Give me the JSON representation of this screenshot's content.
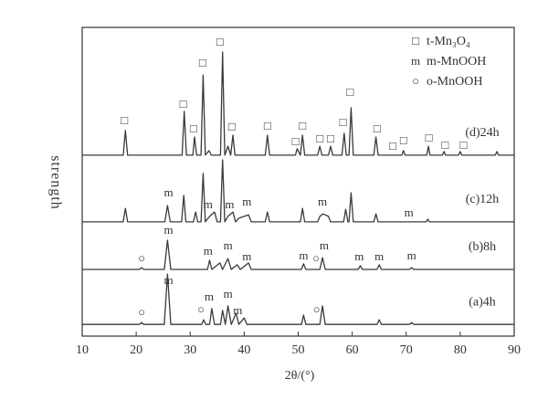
{
  "chart_data": {
    "type": "line",
    "x_label": "2θ/(°)",
    "y_label": "strength",
    "xlim": [
      10,
      90
    ],
    "xticks": [
      10,
      20,
      30,
      40,
      50,
      60,
      70,
      80,
      90
    ],
    "ylim": [
      0,
      100
    ],
    "grid": false,
    "color": "#3a3a3a",
    "legend_position": "top-right",
    "legend": [
      {
        "symbol": "□",
        "label": "t-Mn₃O₄"
      },
      {
        "symbol": "m",
        "label": "m-MnOOH"
      },
      {
        "symbol": "○",
        "label": "o-MnOOH"
      }
    ],
    "series": [
      {
        "name": "(d)24h",
        "x": [
          10,
          17.6,
          18,
          18.4,
          28.5,
          28.9,
          29.3,
          30.5,
          30.8,
          31.2,
          32.0,
          32.4,
          32.8,
          33.5,
          33.9,
          35.6,
          36,
          36.4,
          37,
          37.5,
          37.9,
          38.3,
          43.9,
          44.3,
          44.7,
          49.5,
          49.8,
          50.4,
          50.8,
          51.2,
          53.6,
          54,
          54.4,
          55.6,
          56,
          56.4,
          58.1,
          58.5,
          58.9,
          59.4,
          59.8,
          60.2,
          64,
          64.4,
          64.8,
          69.2,
          69.5,
          69.8,
          73.8,
          74.1,
          74.4,
          76.7,
          77,
          77.3,
          79.7,
          80,
          80.3,
          86.5,
          86.8,
          87.1,
          90
        ],
        "values": [
          58.6,
          58.6,
          66.6,
          58.6,
          58.6,
          72.8,
          58.6,
          58.6,
          64.5,
          58.6,
          58.6,
          84.6,
          58.6,
          60.1,
          58.6,
          58.6,
          92.0,
          58.6,
          61.5,
          58.6,
          65.1,
          58.6,
          58.6,
          65.1,
          58.6,
          58.6,
          60.7,
          58.6,
          65.1,
          58.6,
          58.6,
          61.5,
          58.6,
          58.6,
          61.5,
          58.6,
          58.6,
          65.7,
          58.6,
          58.6,
          74.0,
          58.6,
          58.6,
          64.5,
          58.6,
          58.6,
          60.1,
          58.6,
          58.6,
          61.5,
          58.6,
          58.6,
          59.8,
          58.6,
          58.6,
          59.8,
          58.6,
          58.6,
          59.8,
          58.6,
          58.6
        ]
      },
      {
        "name": "(c)12h",
        "x": [
          10,
          17.6,
          18,
          18.4,
          25.3,
          25.8,
          26.3,
          28.4,
          28.8,
          29.2,
          30.6,
          31,
          31.4,
          32,
          32.4,
          32.8,
          33.6,
          34.5,
          35,
          35.6,
          36,
          36.4,
          37,
          37.9,
          38.4,
          39,
          40.8,
          41.3,
          43.9,
          44.3,
          44.7,
          50.4,
          50.8,
          51.2,
          53.6,
          54,
          54.6,
          55.6,
          56,
          58.4,
          58.8,
          59.2,
          59.4,
          59.8,
          60.2,
          64,
          64.4,
          64.8,
          73.7,
          74,
          74.3,
          90
        ],
        "values": [
          37,
          37,
          41.4,
          37,
          37,
          42.3,
          37,
          37,
          45.6,
          37,
          37,
          40.2,
          37,
          37,
          52.7,
          37,
          38.8,
          40.2,
          37,
          37,
          57.1,
          37,
          38.8,
          40.2,
          37,
          38.2,
          39.3,
          37,
          37,
          40.2,
          37,
          37,
          41.4,
          37,
          37,
          38.8,
          39.6,
          38.8,
          37,
          37,
          41.1,
          37,
          37,
          46.4,
          37,
          37,
          39.6,
          37,
          37,
          37.9,
          37,
          37
        ]
      },
      {
        "name": "(b)8h",
        "x": [
          10,
          20.6,
          21,
          21.4,
          25.2,
          25.8,
          26.4,
          33.2,
          33.6,
          34,
          35.5,
          36,
          37,
          37.6,
          38.7,
          39.3,
          40.8,
          41.3,
          50.6,
          51,
          51.4,
          54,
          54.5,
          55,
          61.1,
          61.5,
          61.9,
          64.6,
          65,
          65.4,
          70.6,
          71,
          71.4,
          90
        ],
        "values": [
          21.6,
          21.6,
          22.2,
          21.6,
          21.6,
          31.1,
          21.6,
          21.6,
          24.6,
          21.6,
          23.7,
          21.6,
          25.1,
          21.6,
          23.1,
          21.6,
          23.7,
          21.6,
          21.6,
          23.4,
          21.6,
          21.6,
          25.4,
          21.6,
          21.6,
          22.8,
          21.6,
          21.6,
          23.1,
          21.6,
          21.6,
          22.2,
          21.6,
          21.6
        ]
      },
      {
        "name": "(a)4h",
        "x": [
          10,
          20.6,
          21,
          21.4,
          25.2,
          25.8,
          26.4,
          32.1,
          32.5,
          32.9,
          33.6,
          34,
          34.5,
          35.6,
          36,
          36.5,
          37,
          37.6,
          38.5,
          39,
          40,
          40.5,
          50.6,
          51,
          51.4,
          54,
          54.5,
          55,
          64.6,
          65,
          65.4,
          70.6,
          71,
          71.4,
          90
        ],
        "values": [
          3.8,
          3.8,
          4.4,
          3.8,
          3.8,
          20.1,
          3.8,
          3.8,
          5.3,
          3.8,
          3.8,
          8.9,
          3.8,
          3.8,
          8.3,
          3.8,
          9.8,
          3.8,
          7.4,
          3.8,
          5.9,
          3.8,
          3.8,
          6.8,
          3.8,
          3.8,
          9.8,
          3.8,
          3.8,
          5.3,
          3.8,
          3.8,
          4.4,
          3.8,
          3.8
        ]
      }
    ],
    "annotations": [
      {
        "symbol": "□",
        "x": [
          17.8,
          28.7,
          30.6,
          32.3,
          35.5,
          37.7,
          44.3,
          49.5,
          50.8,
          54,
          56,
          58.3,
          59.6,
          64.6,
          67.5,
          69.5,
          74.2,
          77.2,
          80.6
        ],
        "y": [
          69.5,
          74.9,
          66.9,
          88.2,
          95.0,
          67.5,
          67.8,
          62.7,
          67.8,
          63.6,
          63.6,
          68.9,
          78.7,
          66.9,
          61.2,
          63.0,
          63.9,
          61.5,
          61.5
        ]
      },
      {
        "symbol": "m",
        "x": [
          26,
          33.3,
          37.3,
          40.5,
          54.5,
          70.5,
          26,
          33.3,
          37,
          40.5,
          51,
          54.8,
          61.3,
          65,
          71,
          26,
          33.5,
          37,
          38.8
        ],
        "y": [
          46.2,
          42.3,
          42.3,
          43.2,
          43.2,
          39.6,
          34.0,
          27.2,
          29.0,
          25.4,
          25.7,
          29.0,
          25.4,
          25.4,
          25.7,
          17.8,
          12.4,
          13.3,
          8.0
        ]
      },
      {
        "symbol": "○",
        "x": [
          21,
          53.3,
          21,
          32,
          53.4
        ],
        "y": [
          24.9,
          24.9,
          7.4,
          8.3,
          8.3
        ]
      }
    ]
  }
}
